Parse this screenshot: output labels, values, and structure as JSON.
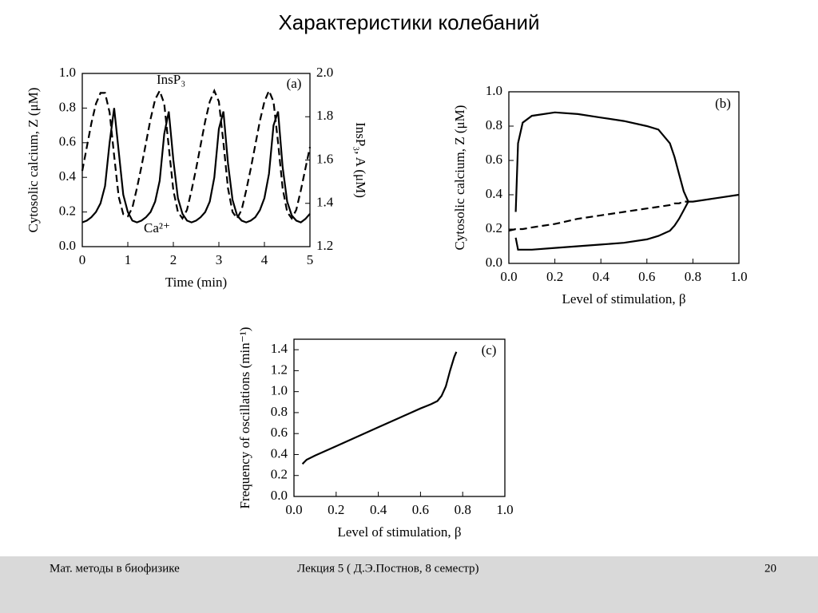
{
  "title": "Характеристики колебаний",
  "footer": {
    "left": "Мат. методы в биофизике",
    "center": "Лекция 5 ( Д.Э.Постнов, 8 семестр)",
    "page_number": 20
  },
  "chart_data": [
    {
      "type": "line",
      "panel_label": "(a)",
      "xlabel": "Time (min)",
      "ylabel": "Cytosolic calcium, Z (μM)",
      "y2label": "InsP₃, A (μM)",
      "annotations": [
        "InsP₃",
        "Ca²⁺"
      ],
      "xlim": [
        0,
        5
      ],
      "xticks": [
        0,
        1,
        2,
        3,
        4,
        5
      ],
      "ylim": [
        0,
        1
      ],
      "yticks": [
        {
          "value": 0,
          "label": "0.0"
        },
        0.2,
        0.4,
        0.6,
        0.8,
        {
          "value": 1,
          "label": "1.0"
        }
      ],
      "y2lim": [
        1.2,
        2
      ],
      "y2ticks": [
        1.2,
        1.4,
        1.6,
        1.8,
        {
          "value": 2,
          "label": "2.0"
        }
      ],
      "x": [
        0,
        0.1,
        0.2,
        0.3,
        0.4,
        0.5,
        0.6,
        0.7,
        0.8,
        0.9,
        1,
        1.1,
        1.2,
        1.3,
        1.4,
        1.5,
        1.6,
        1.7,
        1.8,
        1.9,
        2,
        2.1,
        2.2,
        2.3,
        2.4,
        2.5,
        2.6,
        2.7,
        2.8,
        2.9,
        3,
        3.1,
        3.2,
        3.3,
        3.4,
        3.5,
        3.6,
        3.7,
        3.8,
        3.9,
        4,
        4.1,
        4.2,
        4.3,
        4.4,
        4.5,
        4.6,
        4.7,
        4.8,
        4.9,
        5
      ],
      "series": [
        {
          "color": "#000000",
          "dash": false,
          "values": [
            0.14,
            0.15,
            0.17,
            0.2,
            0.25,
            0.35,
            0.6,
            0.8,
            0.55,
            0.3,
            0.2,
            0.15,
            0.14,
            0.15,
            0.17,
            0.2,
            0.26,
            0.38,
            0.65,
            0.78,
            0.5,
            0.28,
            0.19,
            0.15,
            0.14,
            0.15,
            0.17,
            0.2,
            0.26,
            0.4,
            0.68,
            0.78,
            0.48,
            0.27,
            0.18,
            0.15,
            0.14,
            0.15,
            0.17,
            0.21,
            0.28,
            0.42,
            0.7,
            0.78,
            0.46,
            0.26,
            0.18,
            0.15,
            0.14,
            0.16,
            0.19
          ]
        },
        {
          "color": "#000000",
          "dash": true,
          "axis": "y2",
          "values": [
            1.55,
            1.66,
            1.77,
            1.86,
            1.91,
            1.91,
            1.82,
            1.62,
            1.43,
            1.35,
            1.34,
            1.38,
            1.47,
            1.57,
            1.68,
            1.79,
            1.88,
            1.92,
            1.86,
            1.66,
            1.46,
            1.36,
            1.33,
            1.37,
            1.46,
            1.56,
            1.67,
            1.78,
            1.87,
            1.92,
            1.87,
            1.68,
            1.47,
            1.36,
            1.33,
            1.37,
            1.46,
            1.56,
            1.67,
            1.78,
            1.87,
            1.92,
            1.87,
            1.68,
            1.47,
            1.36,
            1.33,
            1.37,
            1.46,
            1.56,
            1.66
          ]
        }
      ]
    },
    {
      "type": "line",
      "panel_label": "(b)",
      "xlabel": "Level of stimulation, β",
      "ylabel": "Cytosolic calcium, Z (μM)",
      "xlim": [
        0,
        1
      ],
      "xticks": [
        {
          "value": 0,
          "label": "0.0"
        },
        0.2,
        0.4,
        0.6,
        0.8,
        {
          "value": 1,
          "label": "1.0"
        }
      ],
      "ylim": [
        0,
        1
      ],
      "yticks": [
        {
          "value": 0,
          "label": "0.0"
        },
        0.2,
        0.4,
        0.6,
        0.8,
        {
          "value": 1,
          "label": "1.0"
        }
      ],
      "x": [
        0,
        0.03,
        0.04,
        0.06,
        0.1,
        0.2,
        0.3,
        0.4,
        0.5,
        0.6,
        0.65,
        0.7,
        0.72,
        0.74,
        0.76,
        0.78,
        0.8,
        0.9,
        1
      ],
      "series": [
        {
          "color": "#000000",
          "dash": false,
          "values": [
            null,
            0.3,
            0.7,
            0.82,
            0.86,
            0.88,
            0.87,
            0.85,
            0.83,
            0.8,
            0.78,
            0.7,
            0.62,
            0.52,
            0.42,
            0.36,
            null,
            null,
            null
          ]
        },
        {
          "color": "#000000",
          "dash": false,
          "values": [
            null,
            0.15,
            0.08,
            0.08,
            0.08,
            0.09,
            0.1,
            0.11,
            0.12,
            0.14,
            0.16,
            0.19,
            0.22,
            0.26,
            0.31,
            0.36,
            null,
            null,
            null
          ]
        },
        {
          "color": "#000000",
          "dash": true,
          "values": [
            0.19,
            0.2,
            0.2,
            0.2,
            0.21,
            0.23,
            0.26,
            0.28,
            0.3,
            0.32,
            0.33,
            0.34,
            0.35,
            0.35,
            0.36,
            0.36,
            null,
            null,
            null
          ]
        },
        {
          "color": "#000000",
          "dash": false,
          "values": [
            null,
            null,
            null,
            null,
            null,
            null,
            null,
            null,
            null,
            null,
            null,
            null,
            null,
            null,
            null,
            0.36,
            0.36,
            0.38,
            0.4
          ]
        }
      ]
    },
    {
      "type": "line",
      "panel_label": "(c)",
      "xlabel": "Level of stimulation, β",
      "ylabel": "Frequency of oscillations (min⁻¹)",
      "xlim": [
        0,
        1
      ],
      "xticks": [
        {
          "value": 0,
          "label": "0.0"
        },
        0.2,
        0.4,
        0.6,
        0.8,
        {
          "value": 1,
          "label": "1.0"
        }
      ],
      "ylim": [
        0,
        1.5
      ],
      "yticks": [
        {
          "value": 0,
          "label": "0.0"
        },
        0.2,
        0.4,
        0.6,
        0.8,
        {
          "value": 1,
          "label": "1.0"
        },
        1.2,
        1.4
      ],
      "x": [
        0.04,
        0.06,
        0.1,
        0.2,
        0.3,
        0.4,
        0.5,
        0.6,
        0.65,
        0.68,
        0.7,
        0.72,
        0.74,
        0.76,
        0.77
      ],
      "series": [
        {
          "color": "#000000",
          "dash": false,
          "values": [
            0.31,
            0.35,
            0.39,
            0.48,
            0.57,
            0.66,
            0.75,
            0.84,
            0.88,
            0.91,
            0.96,
            1.05,
            1.2,
            1.33,
            1.38
          ]
        }
      ]
    }
  ]
}
